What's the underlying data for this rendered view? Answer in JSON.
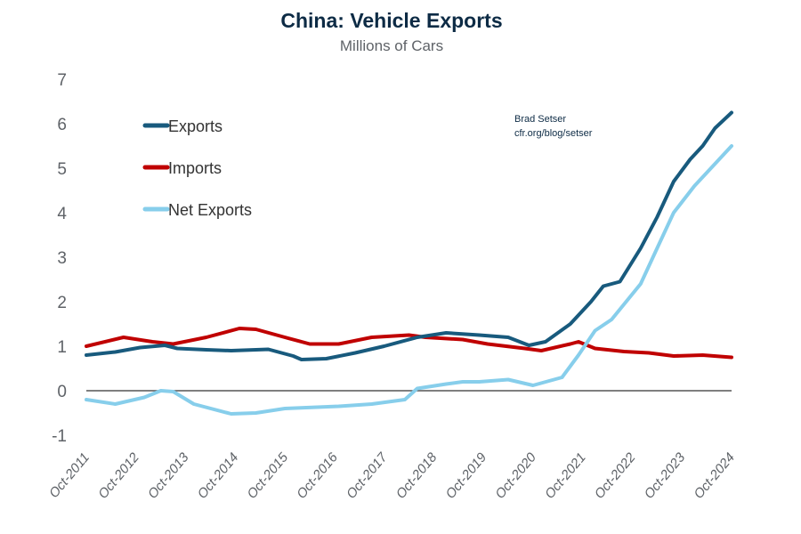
{
  "chart_data": {
    "type": "line",
    "title": "China: Vehicle Exports",
    "subtitle": "Millions of Cars",
    "annotation": [
      "Brad Setser",
      "cfr.org/blog/setser"
    ],
    "ylim": [
      -1,
      7
    ],
    "yticks": [
      "-1",
      "0",
      "1",
      "2",
      "3",
      "4",
      "5",
      "6",
      "7"
    ],
    "xticks": [
      "Oct-2011",
      "Oct-2012",
      "Oct-2013",
      "Oct-2014",
      "Oct-2015",
      "Oct-2016",
      "Oct-2017",
      "Oct-2018",
      "Oct-2019",
      "Oct-2020",
      "Oct-2021",
      "Oct-2022",
      "Oct-2023",
      "Oct-2024"
    ],
    "legend_position": "top-left",
    "grid": false,
    "series": [
      {
        "name": "Exports",
        "color": "#185a7d",
        "points": [
          [
            "2011-10",
            0.8
          ],
          [
            "2012-05",
            0.87
          ],
          [
            "2012-11",
            0.97
          ],
          [
            "2013-05",
            1.02
          ],
          [
            "2013-08",
            0.95
          ],
          [
            "2014-03",
            0.92
          ],
          [
            "2014-09",
            0.9
          ],
          [
            "2015-06",
            0.93
          ],
          [
            "2015-12",
            0.78
          ],
          [
            "2016-02",
            0.7
          ],
          [
            "2016-08",
            0.72
          ],
          [
            "2017-03",
            0.85
          ],
          [
            "2017-10",
            1.0
          ],
          [
            "2018-06",
            1.2
          ],
          [
            "2019-01",
            1.3
          ],
          [
            "2019-09",
            1.25
          ],
          [
            "2020-04",
            1.2
          ],
          [
            "2020-09",
            1.02
          ],
          [
            "2021-01",
            1.1
          ],
          [
            "2021-07",
            1.5
          ],
          [
            "2021-12",
            2.0
          ],
          [
            "2022-03",
            2.35
          ],
          [
            "2022-07",
            2.45
          ],
          [
            "2022-12",
            3.2
          ],
          [
            "2023-04",
            3.9
          ],
          [
            "2023-08",
            4.7
          ],
          [
            "2023-12",
            5.2
          ],
          [
            "2024-03",
            5.5
          ],
          [
            "2024-06",
            5.9
          ],
          [
            "2024-10",
            6.25
          ]
        ]
      },
      {
        "name": "Imports",
        "color": "#c00000",
        "points": [
          [
            "2011-10",
            1.0
          ],
          [
            "2012-07",
            1.2
          ],
          [
            "2013-02",
            1.1
          ],
          [
            "2013-07",
            1.05
          ],
          [
            "2014-03",
            1.2
          ],
          [
            "2014-11",
            1.4
          ],
          [
            "2015-03",
            1.38
          ],
          [
            "2015-10",
            1.2
          ],
          [
            "2016-04",
            1.05
          ],
          [
            "2016-11",
            1.05
          ],
          [
            "2017-07",
            1.2
          ],
          [
            "2018-04",
            1.25
          ],
          [
            "2018-08",
            1.2
          ],
          [
            "2019-05",
            1.15
          ],
          [
            "2019-11",
            1.05
          ],
          [
            "2020-08",
            0.95
          ],
          [
            "2020-12",
            0.9
          ],
          [
            "2021-07",
            1.05
          ],
          [
            "2021-09",
            1.1
          ],
          [
            "2022-01",
            0.95
          ],
          [
            "2022-08",
            0.88
          ],
          [
            "2023-02",
            0.85
          ],
          [
            "2023-08",
            0.78
          ],
          [
            "2024-03",
            0.8
          ],
          [
            "2024-10",
            0.75
          ]
        ]
      },
      {
        "name": "Net Exports",
        "color": "#87ceeb",
        "points": [
          [
            "2011-10",
            -0.2
          ],
          [
            "2012-05",
            -0.3
          ],
          [
            "2012-12",
            -0.15
          ],
          [
            "2013-04",
            0.0
          ],
          [
            "2013-07",
            -0.02
          ],
          [
            "2013-12",
            -0.3
          ],
          [
            "2014-09",
            -0.52
          ],
          [
            "2015-03",
            -0.5
          ],
          [
            "2015-10",
            -0.4
          ],
          [
            "2016-11",
            -0.35
          ],
          [
            "2017-07",
            -0.3
          ],
          [
            "2018-03",
            -0.2
          ],
          [
            "2018-06",
            0.05
          ],
          [
            "2019-01",
            0.15
          ],
          [
            "2019-05",
            0.2
          ],
          [
            "2019-09",
            0.2
          ],
          [
            "2020-04",
            0.25
          ],
          [
            "2020-10",
            0.12
          ],
          [
            "2021-05",
            0.3
          ],
          [
            "2021-09",
            0.8
          ],
          [
            "2022-01",
            1.35
          ],
          [
            "2022-05",
            1.6
          ],
          [
            "2022-12",
            2.4
          ],
          [
            "2023-04",
            3.2
          ],
          [
            "2023-08",
            4.0
          ],
          [
            "2024-01",
            4.6
          ],
          [
            "2024-05",
            5.0
          ],
          [
            "2024-10",
            5.5
          ]
        ]
      }
    ]
  }
}
